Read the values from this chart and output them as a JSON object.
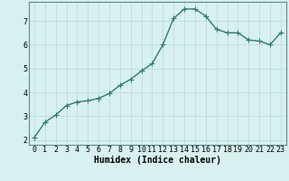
{
  "x": [
    0,
    1,
    2,
    3,
    4,
    5,
    6,
    7,
    8,
    9,
    10,
    11,
    12,
    13,
    14,
    15,
    16,
    17,
    18,
    19,
    20,
    21,
    22,
    23
  ],
  "y": [
    2.1,
    2.75,
    3.05,
    3.45,
    3.6,
    3.65,
    3.75,
    3.95,
    4.3,
    4.55,
    4.9,
    5.2,
    6.0,
    7.1,
    7.5,
    7.5,
    7.2,
    6.65,
    6.5,
    6.5,
    6.2,
    6.15,
    6.0,
    6.5
  ],
  "line_color": "#2e7d6e",
  "marker": "+",
  "marker_size": 4,
  "bg_color": "#d8f0f0",
  "grid_color": "#b8d8d8",
  "xlabel": "Humidex (Indice chaleur)",
  "xlabel_fontsize": 7,
  "yticks": [
    2,
    3,
    4,
    5,
    6,
    7
  ],
  "ylim": [
    1.8,
    7.8
  ],
  "xlim": [
    -0.5,
    23.5
  ],
  "xtick_labels": [
    "0",
    "1",
    "2",
    "3",
    "4",
    "5",
    "6",
    "7",
    "8",
    "9",
    "10",
    "11",
    "12",
    "13",
    "14",
    "15",
    "16",
    "17",
    "18",
    "19",
    "20",
    "21",
    "22",
    "23"
  ],
  "tick_fontsize": 6,
  "line_width": 1.0
}
